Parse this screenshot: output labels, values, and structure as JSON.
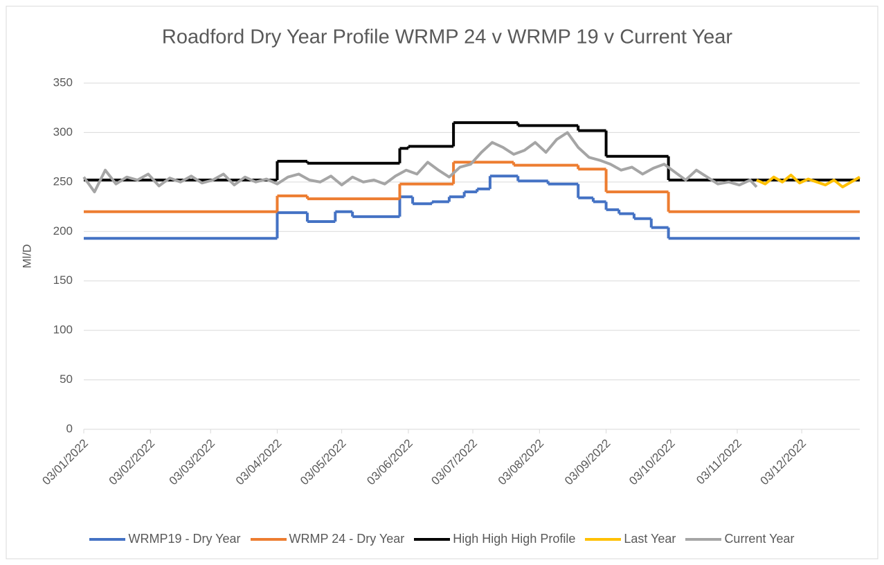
{
  "chart_data": {
    "type": "line",
    "title": "Roadford Dry Year Profile WRMP 24 v WRMP 19 v Current Year",
    "y_label": "Ml/D",
    "xlim": [
      "03/01/2022",
      "30/12/2022"
    ],
    "xticks": [
      "03/01/2022",
      "03/02/2022",
      "03/03/2022",
      "03/04/2022",
      "03/05/2022",
      "03/06/2022",
      "03/07/2022",
      "03/08/2022",
      "03/09/2022",
      "03/10/2022",
      "03/11/2022",
      "03/12/2022"
    ],
    "ylim": [
      0,
      350
    ],
    "yticks": [
      0,
      50,
      100,
      150,
      200,
      250,
      300,
      350
    ],
    "grid": true,
    "legend": "bottom",
    "series": [
      {
        "name": "WRMP19 - Dry Year",
        "color": "#4472c4",
        "step": true,
        "x": [
          "03/01/2022",
          "03/04/2022",
          "17/04/2022",
          "30/04/2022",
          "08/05/2022",
          "30/05/2022",
          "05/06/2022",
          "14/06/2022",
          "22/06/2022",
          "29/06/2022",
          "05/07/2022",
          "11/07/2022",
          "24/07/2022",
          "07/08/2022",
          "21/08/2022",
          "28/08/2022",
          "03/09/2022",
          "09/09/2022",
          "16/09/2022",
          "24/09/2022",
          "02/10/2022"
        ],
        "values": [
          193,
          219,
          210,
          220,
          215,
          235,
          228,
          230,
          235,
          240,
          243,
          256,
          251,
          248,
          234,
          230,
          222,
          218,
          213,
          204,
          193
        ]
      },
      {
        "name": "WRMP 24 - Dry Year",
        "color": "#ed7d31",
        "step": true,
        "x": [
          "03/01/2022",
          "03/04/2022",
          "17/04/2022",
          "30/05/2022",
          "24/06/2022",
          "22/07/2022",
          "21/08/2022",
          "03/09/2022",
          "02/10/2022"
        ],
        "values": [
          220,
          236,
          233,
          248,
          270,
          267,
          263,
          240,
          220
        ]
      },
      {
        "name": "High High High Profile",
        "color": "#000000",
        "step": true,
        "x": [
          "03/01/2022",
          "03/04/2022",
          "17/04/2022",
          "30/05/2022",
          "03/06/2022",
          "24/06/2022",
          "24/07/2022",
          "21/08/2022",
          "03/09/2022",
          "02/10/2022"
        ],
        "values": [
          252,
          271,
          269,
          284,
          286,
          310,
          307,
          302,
          276,
          252
        ]
      },
      {
        "name": "Last Year",
        "color": "#ffc000",
        "x": [
          "12/11/2022",
          "16/11/2022",
          "20/11/2022",
          "24/11/2022",
          "28/11/2022",
          "02/12/2022",
          "06/12/2022",
          "10/12/2022",
          "14/12/2022",
          "18/12/2022",
          "22/12/2022",
          "26/12/2022",
          "30/12/2022"
        ],
        "values": [
          252,
          248,
          255,
          250,
          257,
          249,
          253,
          250,
          247,
          252,
          245,
          250,
          255
        ]
      },
      {
        "name": "Current Year",
        "color": "#a5a5a5",
        "x": [
          "03/01/2022",
          "08/01/2022",
          "13/01/2022",
          "18/01/2022",
          "23/01/2022",
          "28/01/2022",
          "02/02/2022",
          "07/02/2022",
          "12/02/2022",
          "17/02/2022",
          "22/02/2022",
          "27/02/2022",
          "04/03/2022",
          "09/03/2022",
          "14/03/2022",
          "19/03/2022",
          "24/03/2022",
          "29/03/2022",
          "03/04/2022",
          "08/04/2022",
          "13/04/2022",
          "18/04/2022",
          "23/04/2022",
          "28/04/2022",
          "03/05/2022",
          "08/05/2022",
          "13/05/2022",
          "18/05/2022",
          "23/05/2022",
          "28/05/2022",
          "02/06/2022",
          "07/06/2022",
          "12/06/2022",
          "17/06/2022",
          "22/06/2022",
          "27/06/2022",
          "02/07/2022",
          "07/07/2022",
          "12/07/2022",
          "17/07/2022",
          "22/07/2022",
          "27/07/2022",
          "01/08/2022",
          "06/08/2022",
          "11/08/2022",
          "16/08/2022",
          "21/08/2022",
          "26/08/2022",
          "31/08/2022",
          "05/09/2022",
          "10/09/2022",
          "15/09/2022",
          "20/09/2022",
          "25/09/2022",
          "30/09/2022",
          "05/10/2022",
          "10/10/2022",
          "15/10/2022",
          "20/10/2022",
          "25/10/2022",
          "30/10/2022",
          "04/11/2022",
          "09/11/2022",
          "12/11/2022"
        ],
        "values": [
          255,
          240,
          262,
          248,
          255,
          252,
          258,
          246,
          254,
          250,
          256,
          249,
          252,
          258,
          247,
          255,
          250,
          253,
          248,
          255,
          258,
          252,
          250,
          256,
          247,
          255,
          250,
          252,
          248,
          256,
          262,
          258,
          270,
          262,
          255,
          265,
          268,
          280,
          290,
          285,
          278,
          282,
          290,
          280,
          293,
          300,
          285,
          275,
          272,
          268,
          262,
          265,
          258,
          264,
          268,
          260,
          252,
          262,
          255,
          248,
          250,
          247,
          252,
          245
        ]
      }
    ]
  }
}
